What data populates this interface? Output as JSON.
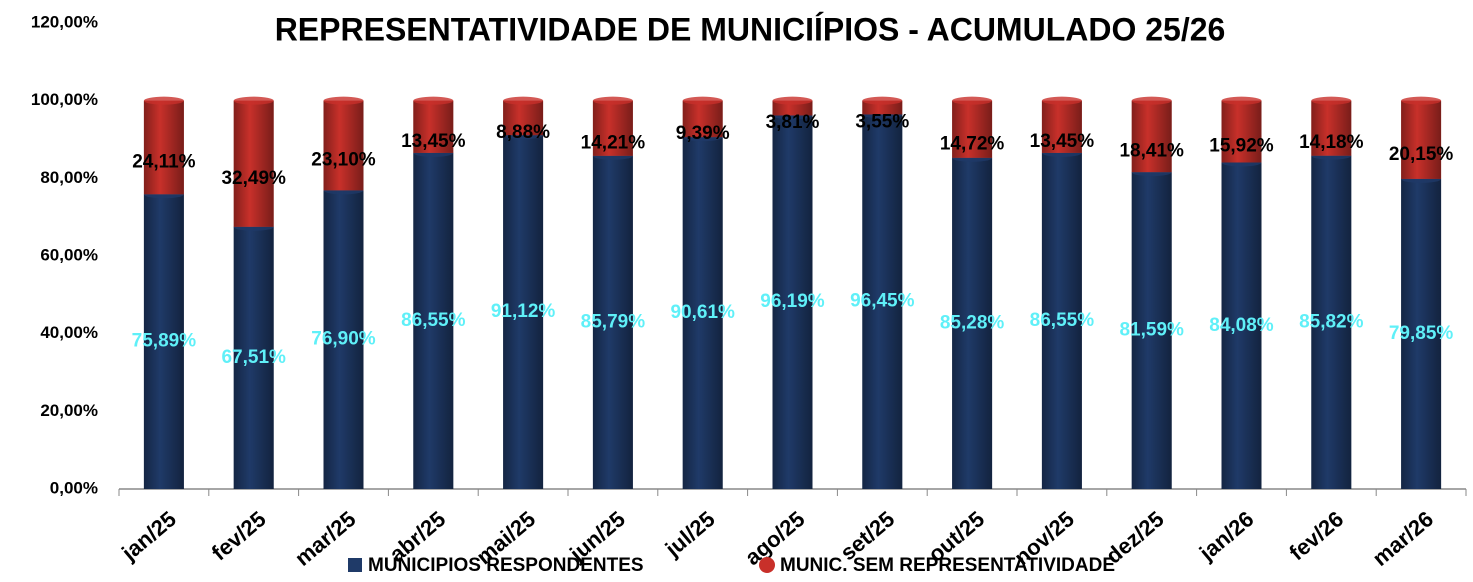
{
  "chart_data": {
    "type": "stacked_bar",
    "title": "REPRESENTATIVIDADE  DE MUNICIÍPIOS - ACUMULADO 25/26",
    "categories": [
      "jan/25",
      "fev/25",
      "mar/25",
      "abr/25",
      "mai/25",
      "jun/25",
      "jul/25",
      "ago/25",
      "set/25",
      "out/25",
      "nov/25",
      "dez/25",
      "jan/26",
      "fev/26",
      "mar/26"
    ],
    "series": [
      {
        "name": "MUNICIPIOS RESPONDENTES",
        "color": "#1f3a68",
        "values": [
          75.89,
          67.51,
          76.9,
          86.55,
          91.12,
          85.79,
          90.61,
          96.19,
          96.45,
          85.28,
          86.55,
          81.59,
          84.08,
          85.82,
          79.85
        ],
        "value_labels": [
          "75,89%",
          "67,51%",
          "76,90%",
          "86,55%",
          "91,12%",
          "85,79%",
          "90,61%",
          "96,19%",
          "96,45%",
          "85,28%",
          "86,55%",
          "81,59%",
          "84,08%",
          "85,82%",
          "79,85%"
        ],
        "label_color": "#5ff0f8"
      },
      {
        "name": "MUNIC. SEM REPRESENTATIVIDADE",
        "color": "#c8302a",
        "values": [
          24.11,
          32.49,
          23.1,
          13.45,
          8.88,
          14.21,
          9.39,
          3.81,
          3.55,
          14.72,
          13.45,
          18.41,
          15.92,
          14.18,
          20.15
        ],
        "value_labels": [
          "24,11%",
          "32,49%",
          "23,10%",
          "13,45%",
          "8,88%",
          "14,21%",
          "9,39%",
          "3,81%",
          "3,55%",
          "14,72%",
          "13,45%",
          "18,41%",
          "15,92%",
          "14,18%",
          "20,15%"
        ],
        "label_color": "#000000"
      }
    ],
    "ylim": [
      0,
      120
    ],
    "yticks": [
      {
        "value": 0,
        "label": "0,00%"
      },
      {
        "value": 20,
        "label": "20,00%"
      },
      {
        "value": 40,
        "label": "40,00%"
      },
      {
        "value": 60,
        "label": "60,00%"
      },
      {
        "value": 80,
        "label": "80,00%"
      },
      {
        "value": 100,
        "label": "100,00%"
      },
      {
        "value": 120,
        "label": "120,00%"
      }
    ],
    "grid": false,
    "legend": "bottom"
  }
}
